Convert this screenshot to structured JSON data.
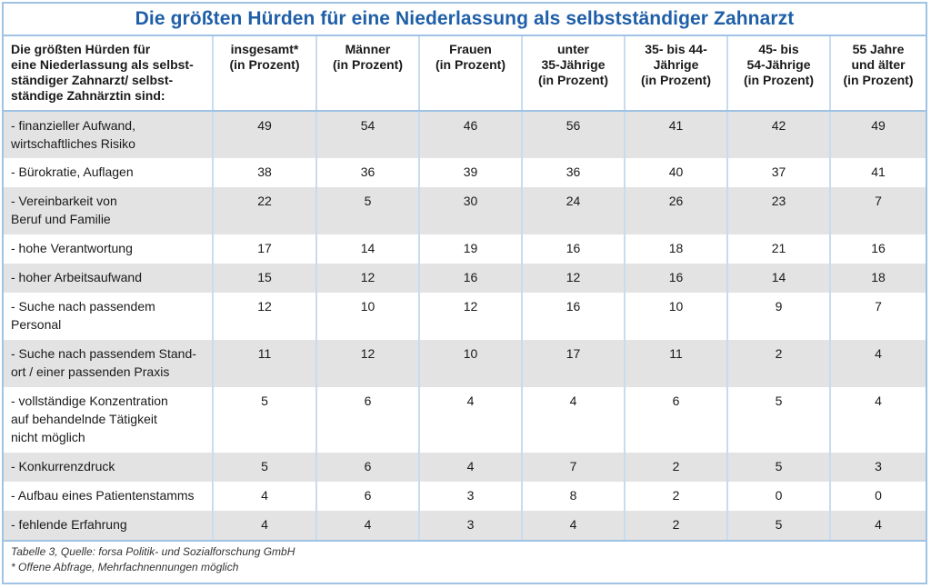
{
  "title": "Die größten Hürden für eine Niederlassung als selbstständiger Zahnarzt",
  "headers": [
    "Die größten Hürden für\neine Niederlassung als selbst-\nständiger Zahnarzt/ selbst-\nständige Zahnärztin sind:",
    "insgesamt*\n(in Prozent)",
    "Männer\n(in Prozent)",
    "Frauen\n(in Prozent)",
    "unter\n35-Jährige\n(in Prozent)",
    "35- bis 44-\nJährige\n(in Prozent)",
    "45- bis\n54-Jährige\n(in Prozent)",
    "55 Jahre\nund älter\n(in Prozent)"
  ],
  "rows": [
    {
      "label": "- finanzieller Aufwand,\nwirtschaftliches Risiko",
      "values": [
        "49",
        "54",
        "46",
        "56",
        "41",
        "42",
        "49"
      ]
    },
    {
      "label": "- Bürokratie, Auflagen",
      "values": [
        "38",
        "36",
        "39",
        "36",
        "40",
        "37",
        "41"
      ]
    },
    {
      "label": "- Vereinbarkeit von\nBeruf und Familie",
      "values": [
        "22",
        "5",
        "30",
        "24",
        "26",
        "23",
        "7"
      ]
    },
    {
      "label": "- hohe Verantwortung",
      "values": [
        "17",
        "14",
        "19",
        "16",
        "18",
        "21",
        "16"
      ]
    },
    {
      "label": "- hoher Arbeitsaufwand",
      "values": [
        "15",
        "12",
        "16",
        "12",
        "16",
        "14",
        "18"
      ]
    },
    {
      "label": "- Suche nach passendem\nPersonal",
      "values": [
        "12",
        "10",
        "12",
        "16",
        "10",
        "9",
        "7"
      ]
    },
    {
      "label": "- Suche nach passendem Stand-\nort / einer passenden Praxis",
      "values": [
        "11",
        "12",
        "10",
        "17",
        "11",
        "2",
        "4"
      ]
    },
    {
      "label": "- vollständige Konzentration\nauf behandelnde Tätigkeit\nnicht möglich",
      "values": [
        "5",
        "6",
        "4",
        "4",
        "6",
        "5",
        "4"
      ]
    },
    {
      "label": "- Konkurrenzdruck",
      "values": [
        "5",
        "6",
        "4",
        "7",
        "2",
        "5",
        "3"
      ]
    },
    {
      "label": "- Aufbau eines Patientenstamms",
      "values": [
        "4",
        "6",
        "3",
        "8",
        "2",
        "0",
        "0"
      ]
    },
    {
      "label": "- fehlende Erfahrung",
      "values": [
        "4",
        "4",
        "3",
        "4",
        "2",
        "5",
        "4"
      ]
    }
  ],
  "footer": {
    "source": "Tabelle 3, Quelle: forsa Politik- und Sozialforschung GmbH",
    "note": "* Offene Abfrage, Mehrfachnennungen möglich"
  },
  "colors": {
    "title": "#1f5fa8",
    "border": "#9fc3e4",
    "stripe": "#e3e3e3"
  }
}
